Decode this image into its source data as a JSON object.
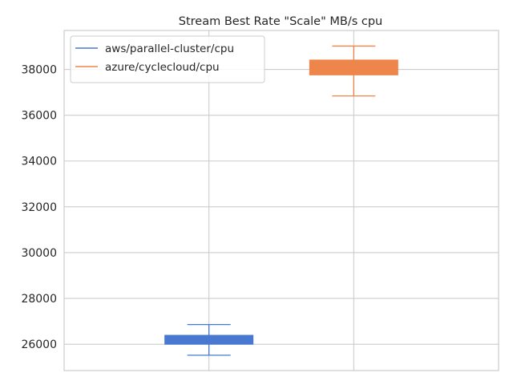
{
  "chart_data": {
    "type": "box",
    "title": "Stream Best Rate \"Scale\" MB/s cpu",
    "xlabel": "",
    "ylabel": "",
    "ylim": [
      24850,
      39700
    ],
    "yticks": [
      26000,
      28000,
      30000,
      32000,
      34000,
      36000,
      38000
    ],
    "ytick_labels": [
      "26000",
      "28000",
      "30000",
      "32000",
      "34000",
      "36000",
      "38000"
    ],
    "grid": true,
    "legend_position": "top-left",
    "series": [
      {
        "name": "aws/parallel-cluster/cpu",
        "color": "#4878d0",
        "whisker_low": 25520,
        "q1": 26000,
        "median": 26200,
        "q3": 26390,
        "whisker_high": 26860
      },
      {
        "name": "azure/cyclecloud/cpu",
        "color": "#ee854a",
        "whisker_low": 36840,
        "q1": 37760,
        "median": 38100,
        "q3": 38410,
        "whisker_high": 39020
      }
    ]
  }
}
